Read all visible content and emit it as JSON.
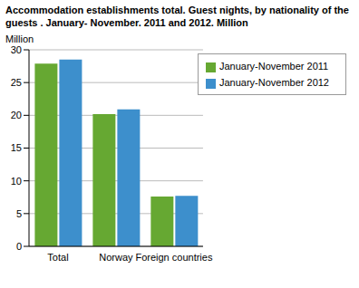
{
  "chart_data": {
    "type": "bar",
    "title": "Accommodation establishments total. Guest nights, by nationality of the guests . January- November. 2011 and 2012. Million",
    "y_label": "Million",
    "categories": [
      "Total",
      "Norway",
      "Foreign countries"
    ],
    "series": [
      {
        "name": "January-November 2011",
        "color": "#66a832",
        "values": [
          27.9,
          20.2,
          7.6
        ]
      },
      {
        "name": "January-November 2012",
        "color": "#3d8fcc",
        "values": [
          28.5,
          20.9,
          7.7
        ]
      }
    ],
    "ylim": [
      0,
      30
    ],
    "yticks": [
      0,
      5,
      10,
      15,
      20,
      25,
      30
    ],
    "grid": true,
    "legend": "upper right"
  }
}
